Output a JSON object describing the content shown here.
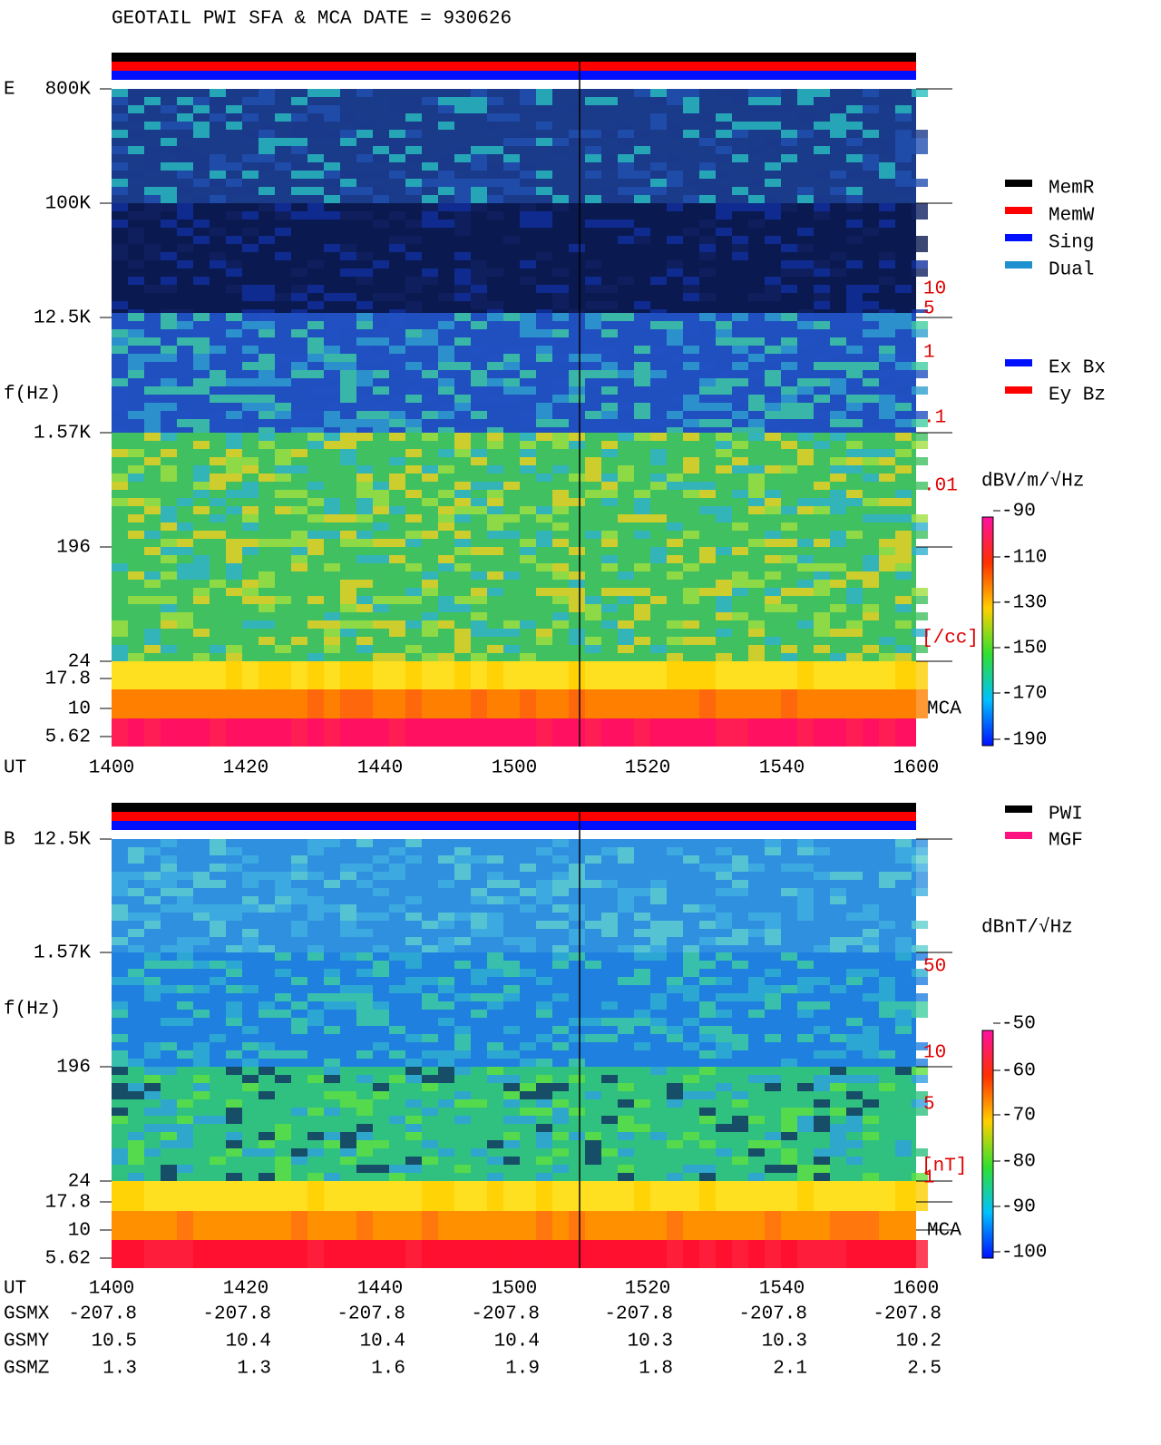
{
  "title": "GEOTAIL  PWI SFA & MCA   DATE = 930626",
  "panels": [
    {
      "label": "E",
      "y_axis_label": "f(Hz)",
      "yticks": [
        "800K",
        "100K",
        "12.5K",
        "1.57K",
        "196",
        "24",
        "17.8",
        "10",
        "5.62"
      ],
      "x_axis_label": "UT",
      "xticks": [
        "1400",
        "1420",
        "1440",
        "1500",
        "1520",
        "1540",
        "1600"
      ],
      "right_ticks": [
        "10",
        "5",
        "1",
        ".1",
        ".01"
      ],
      "right_unit": "[/cc]",
      "mca_label": "MCA",
      "colorbar": {
        "unit": "dBV/m/√Hz",
        "ticks": [
          "-90",
          "-110",
          "-130",
          "-150",
          "-170",
          "-190"
        ]
      },
      "legends": [
        [
          {
            "name": "MemR",
            "color": "#000000"
          },
          {
            "name": "MemW",
            "color": "#ff0000"
          },
          {
            "name": "Sing",
            "color": "#0010ff"
          },
          {
            "name": "Dual",
            "color": "#1e90d0"
          }
        ],
        [
          {
            "name": "Ex Bx",
            "color": "#0010ff"
          },
          {
            "name": "Ey Bz",
            "color": "#ff0000"
          }
        ]
      ]
    },
    {
      "label": "B",
      "y_axis_label": "f(Hz)",
      "yticks": [
        "12.5K",
        "1.57K",
        "196",
        "24",
        "17.8",
        "10",
        "5.62"
      ],
      "x_axis_label": "UT",
      "xticks": [
        "1400",
        "1420",
        "1440",
        "1500",
        "1520",
        "1540",
        "1600"
      ],
      "right_ticks": [
        "50",
        "10",
        "5",
        "1"
      ],
      "right_unit": "[nT]",
      "mca_label": "MCA",
      "colorbar": {
        "unit": "dBnT/√Hz",
        "ticks": [
          "-50",
          "-60",
          "-70",
          "-80",
          "-90",
          "-100"
        ]
      },
      "legends": [
        [
          {
            "name": "PWI",
            "color": "#000000"
          },
          {
            "name": "MGF",
            "color": "#ff1080"
          }
        ]
      ]
    }
  ],
  "orbit": {
    "rows": [
      {
        "label": "GSMX",
        "values": [
          "-207.8",
          "-207.8",
          "-207.8",
          "-207.8",
          "-207.8",
          "-207.8",
          "-207.8"
        ]
      },
      {
        "label": "GSMY",
        "values": [
          "10.5",
          "10.4",
          "10.4",
          "10.4",
          "10.3",
          "10.3",
          "10.2"
        ]
      },
      {
        "label": "GSMZ",
        "values": [
          "1.3",
          "1.3",
          "1.6",
          "1.9",
          "1.8",
          "2.1",
          "2.5"
        ]
      }
    ]
  }
}
